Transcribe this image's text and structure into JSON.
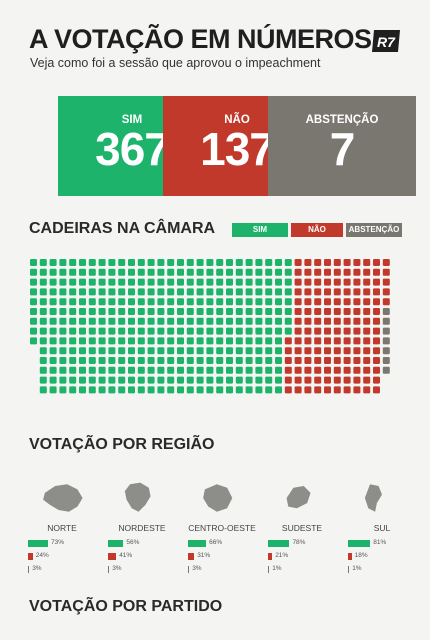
{
  "header": {
    "title": "A VOTAÇÃO EM NÚMEROS",
    "subtitle": "Veja como foi a sessão que aprovou o impeachment",
    "logo_text": "R7"
  },
  "colors": {
    "sim": "#1db36a",
    "nao": "#c0392b",
    "abstencao": "#7a7770",
    "empty": "#e2e2e0"
  },
  "totals": [
    {
      "label": "SIM",
      "value": "367",
      "color": "#1db36a"
    },
    {
      "label": "NÃO",
      "value": "137",
      "color": "#c0392b"
    },
    {
      "label": "ABSTENÇÃO",
      "value": "7",
      "color": "#7a7770"
    }
  ],
  "seats_section": {
    "title": "CADEIRAS NA CÂMARA",
    "legend": [
      "SIM",
      "NÃO",
      "ABSTENÇÃO"
    ]
  },
  "chart_data": [
    {
      "type": "waffle",
      "title": "CADEIRAS NA CÂMARA",
      "categories": [
        "SIM",
        "NÃO",
        "ABSTENÇÃO"
      ],
      "values": [
        367,
        137,
        7
      ]
    },
    {
      "type": "bar",
      "title": "VOTAÇÃO POR REGIÃO",
      "categories": [
        "NORTE",
        "NORDESTE",
        "CENTRO-OESTE",
        "SUDESTE",
        "SUL"
      ],
      "series": [
        {
          "name": "SIM",
          "values": [
            73,
            56,
            66,
            78,
            81
          ]
        },
        {
          "name": "NÃO",
          "values": [
            24,
            41,
            31,
            21,
            18
          ]
        },
        {
          "name": "ABSTENÇÃO",
          "values": [
            3,
            3,
            3,
            1,
            1
          ]
        }
      ]
    }
  ],
  "region_section": {
    "title": "VOTAÇÃO POR REGIÃO",
    "regions": [
      {
        "name": "NORTE",
        "sim": "73%",
        "nao": "24%",
        "abst": "3%"
      },
      {
        "name": "NORDESTE",
        "sim": "56%",
        "nao": "41%",
        "abst": "3%"
      },
      {
        "name": "CENTRO-OESTE",
        "sim": "66%",
        "nao": "31%",
        "abst": "3%"
      },
      {
        "name": "SUDESTE",
        "sim": "78%",
        "nao": "21%",
        "abst": "1%"
      },
      {
        "name": "SUL",
        "sim": "81%",
        "nao": "18%",
        "abst": "1%"
      }
    ]
  },
  "party_section": {
    "title": "VOTAÇÃO POR PARTIDO"
  }
}
